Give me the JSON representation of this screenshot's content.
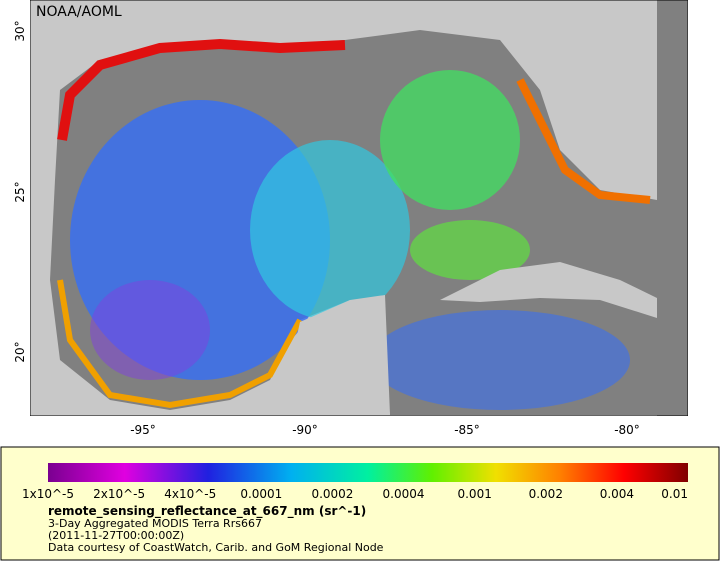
{
  "map": {
    "credit": "NOAA/AOML",
    "lon_labels": [
      "-95°",
      "-90°",
      "-85°",
      "-80°"
    ],
    "lat_labels": [
      "30°",
      "25°",
      "20°"
    ]
  },
  "legend": {
    "colorbar_labels": [
      "1x10^-5",
      "2x10^-5",
      "4x10^-5",
      "0.0001",
      "0.0002",
      "0.0004",
      "0.001",
      "0.002",
      "0.004",
      "0.01"
    ],
    "variable": "remote_sensing_reflectance_at_667_nm (sr^-1)",
    "lines": [
      "3-Day Aggregated MODIS Terra Rrs667",
      "(2011-11-27T00:00:00Z)",
      "Data courtesy of CoastWatch, Carib. and GoM Regional Node"
    ]
  }
}
